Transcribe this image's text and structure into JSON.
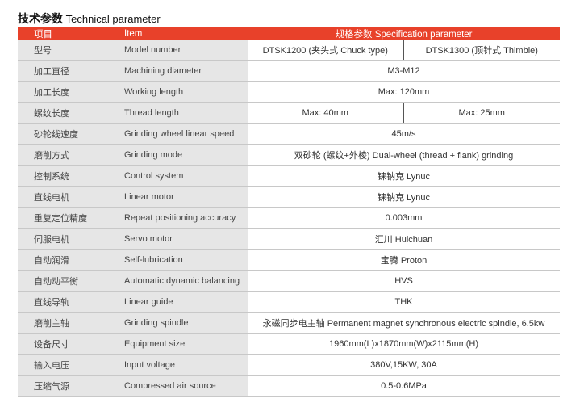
{
  "title": {
    "cn": "技术参数",
    "en": "Technical parameter"
  },
  "header": {
    "item_cn": "项目",
    "item_en": "Item",
    "spec": "规格参数  Specification parameter"
  },
  "rows": [
    {
      "cn": "型号",
      "en": "Model number",
      "values": [
        "DTSK1200 (夹头式 Chuck type)",
        "DTSK1300 (顶针式 Thimble)"
      ]
    },
    {
      "cn": "加工直径",
      "en": "Machining diameter",
      "values": [
        "M3-M12"
      ]
    },
    {
      "cn": "加工长度",
      "en": "Working length",
      "values": [
        "Max: 120mm"
      ]
    },
    {
      "cn": "螺纹长度",
      "en": "Thread length",
      "values": [
        "Max: 40mm",
        "Max:  25mm"
      ]
    },
    {
      "cn": "砂轮线速度",
      "en": "Grinding wheel linear speed",
      "values": [
        "45m/s"
      ]
    },
    {
      "cn": "磨削方式",
      "en": "Grinding mode",
      "values": [
        "双砂轮 (螺纹+外棱)  Dual-wheel (thread + flank) grinding"
      ]
    },
    {
      "cn": "控制系统",
      "en": "Control system",
      "values": [
        "铼钠克 Lynuc"
      ]
    },
    {
      "cn": "直线电机",
      "en": "Linear motor",
      "values": [
        "铼钠克 Lynuc"
      ]
    },
    {
      "cn": "重复定位精度",
      "en": "Repeat positioning accuracy",
      "values": [
        "0.003mm"
      ]
    },
    {
      "cn": "伺服电机",
      "en": "Servo motor",
      "values": [
        "汇川   Huichuan"
      ]
    },
    {
      "cn": "自动润滑",
      "en": "Self-lubrication",
      "values": [
        "宝腾   Proton"
      ]
    },
    {
      "cn": "自动动平衡",
      "en": "Automatic dynamic balancing",
      "values": [
        "HVS"
      ]
    },
    {
      "cn": "直线导轨",
      "en": "Linear guide",
      "values": [
        "THK"
      ]
    },
    {
      "cn": "磨削主轴",
      "en": "Grinding spindle",
      "values": [
        "永磁同步电主轴 Permanent magnet synchronous electric spindle, 6.5kw"
      ]
    },
    {
      "cn": "设备尺寸",
      "en": "Equipment size",
      "values": [
        "1960mm(L)x1870mm(W)x2115mm(H)"
      ]
    },
    {
      "cn": "输入电压",
      "en": "Input voltage",
      "values": [
        "380V,15KW, 30A"
      ]
    },
    {
      "cn": "压缩气源",
      "en": "Compressed air source",
      "values": [
        "0.5-0.6MPa"
      ]
    }
  ]
}
